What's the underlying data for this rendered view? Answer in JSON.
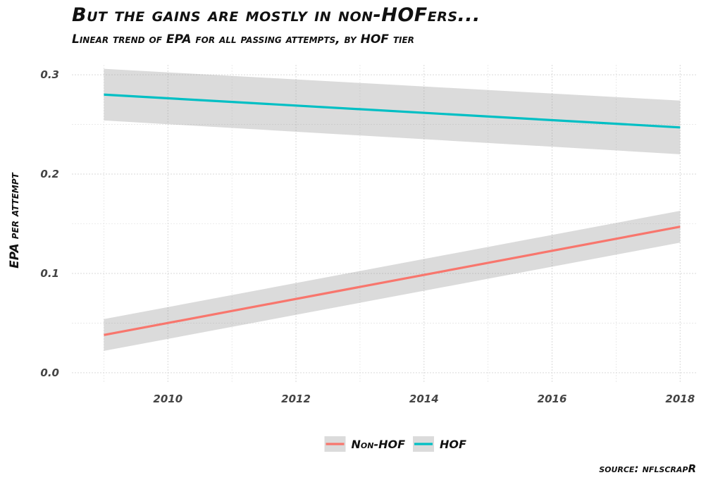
{
  "title": "But the gains are mostly in non-HOFers...",
  "subtitle": "Linear trend of EPA for all passing attempts, by HOF tier",
  "caption": "source: nflscrapR",
  "chart_data": {
    "type": "line",
    "title": "But the gains are mostly in non-HOFers...",
    "subtitle": "Linear trend of EPA for all passing attempts, by HOF tier",
    "xlabel": "",
    "ylabel": "EPA per attempt",
    "xlim": [
      2008.5,
      2018.25
    ],
    "ylim": [
      -0.01,
      0.31
    ],
    "x_ticks": [
      2010,
      2012,
      2014,
      2016,
      2018
    ],
    "x_tick_labels": [
      "2010",
      "2012",
      "2014",
      "2016",
      "2018"
    ],
    "y_ticks": [
      0.0,
      0.1,
      0.2,
      0.3
    ],
    "y_tick_labels": [
      "0.0",
      "0.1",
      "0.2",
      "0.3"
    ],
    "grid": true,
    "legend_position": "bottom",
    "series": [
      {
        "name": "Non-HOF",
        "color": "#F8766D",
        "x": [
          2009,
          2018
        ],
        "y": [
          0.038,
          0.147
        ],
        "ci_lower": [
          0.022,
          0.131
        ],
        "ci_upper": [
          0.054,
          0.163
        ]
      },
      {
        "name": "HOF",
        "color": "#00BFC4",
        "x": [
          2009,
          2018
        ],
        "y": [
          0.28,
          0.247
        ],
        "ci_lower": [
          0.254,
          0.22
        ],
        "ci_upper": [
          0.306,
          0.274
        ]
      }
    ]
  }
}
